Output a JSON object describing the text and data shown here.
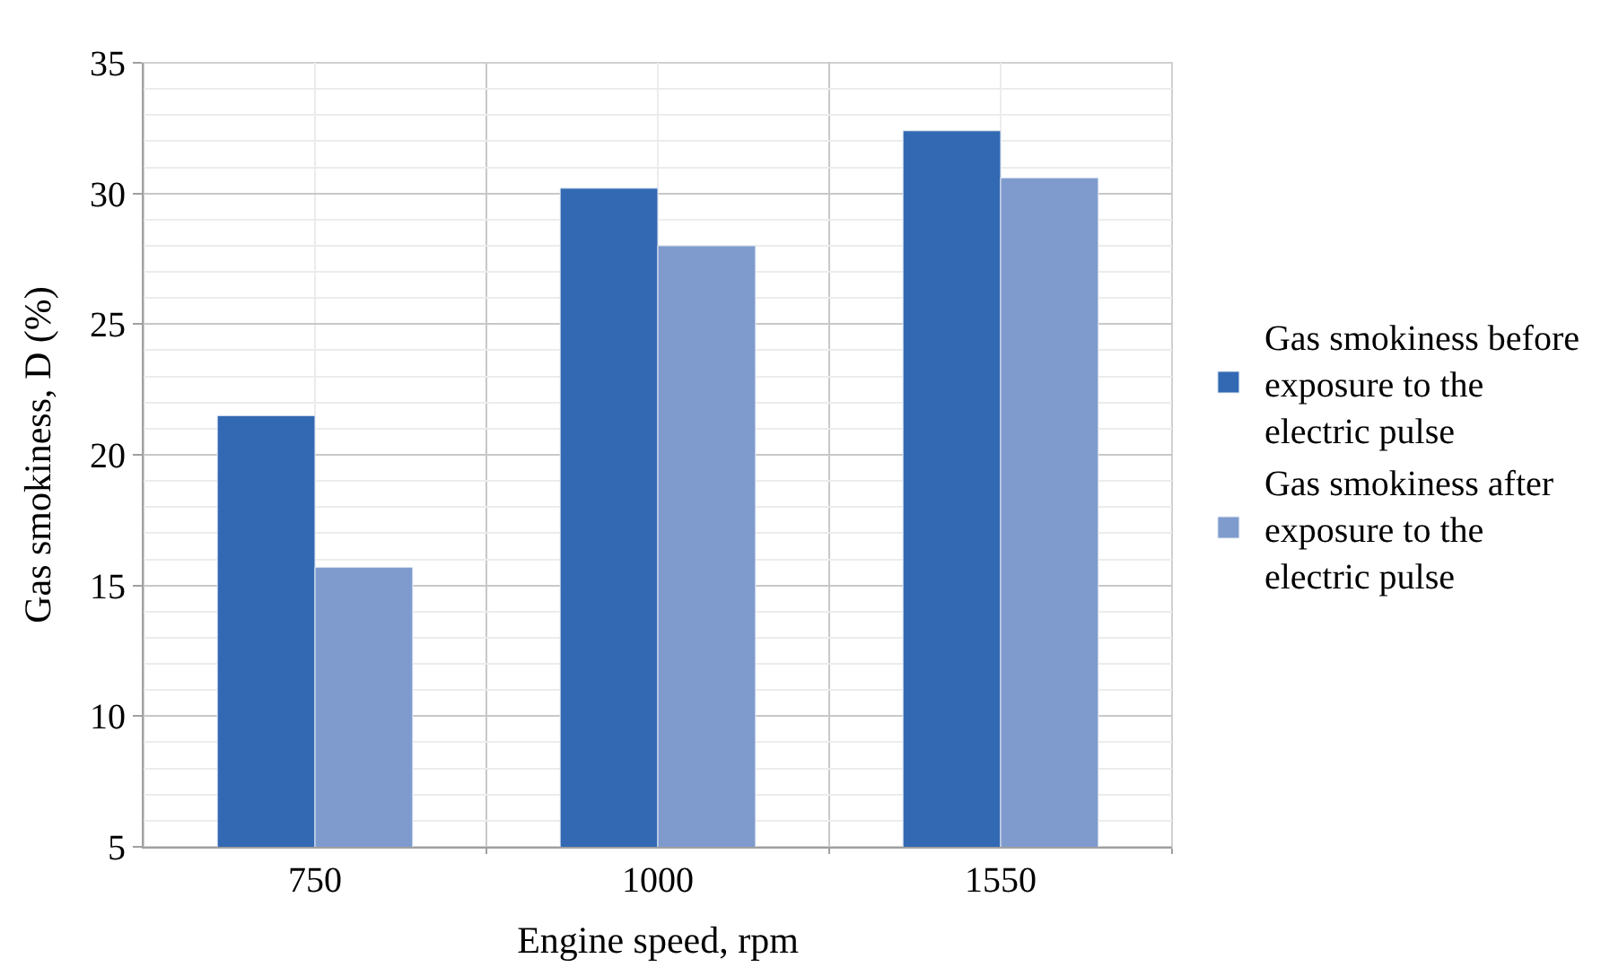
{
  "chart_data": {
    "type": "bar",
    "xlabel": "Engine speed, rpm",
    "ylabel": "Gas smokiness, D (%)",
    "categories": [
      "750",
      "1000",
      "1550"
    ],
    "series": [
      {
        "name": "Gas smokiness before exposure to the electric pulse",
        "color": "#3369b3",
        "values": [
          21.5,
          30.2,
          32.4
        ]
      },
      {
        "name": "Gas smokiness after exposure to the electric pulse",
        "color": "#7f9bcd",
        "values": [
          15.7,
          28.0,
          30.6
        ]
      }
    ],
    "ylim": [
      5,
      35
    ],
    "yticks": [
      5,
      10,
      15,
      20,
      25,
      30,
      35
    ],
    "grid": true,
    "legend": "right"
  }
}
